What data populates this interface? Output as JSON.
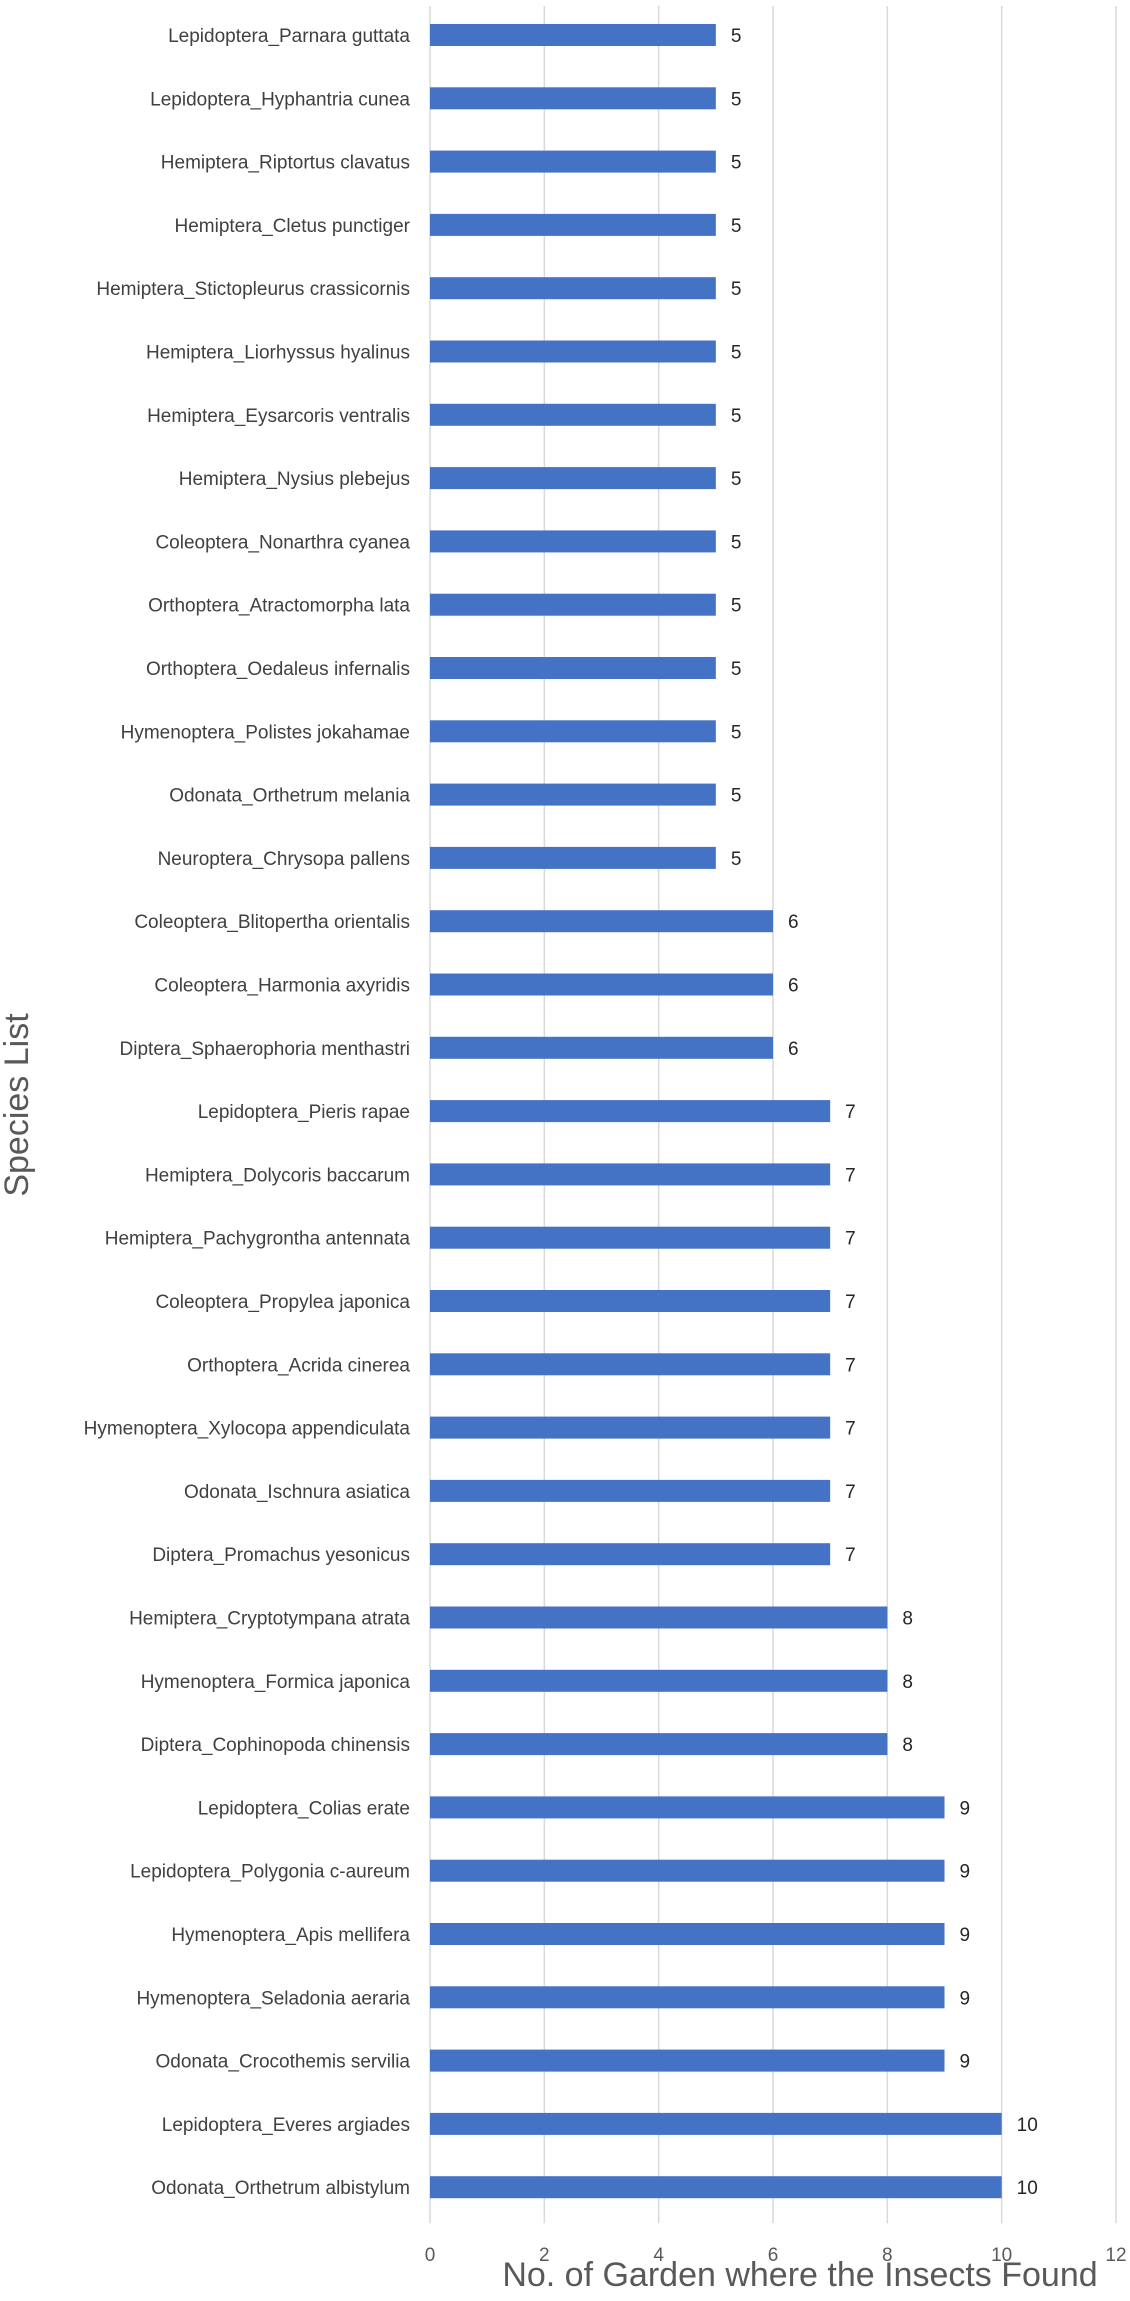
{
  "chart_data": {
    "type": "bar",
    "orientation": "horizontal",
    "title": "",
    "xlabel": "No. of Garden where the Insects Found",
    "ylabel": "Species List",
    "xlim": [
      0,
      12
    ],
    "xticks": [
      0,
      2,
      4,
      6,
      8,
      10,
      12
    ],
    "grid": "vertical",
    "legend": "none",
    "bar_color": "#4472C4",
    "gridline_color": "#D9D9D9",
    "categories": [
      "Lepidoptera_Parnara guttata",
      "Lepidoptera_Hyphantria cunea",
      "Hemiptera_Riptortus clavatus",
      "Hemiptera_Cletus punctiger",
      "Hemiptera_Stictopleurus crassicornis",
      "Hemiptera_Liorhyssus hyalinus",
      "Hemiptera_Eysarcoris ventralis",
      "Hemiptera_Nysius plebejus",
      "Coleoptera_Nonarthra cyanea",
      "Orthoptera_Atractomorpha lata",
      "Orthoptera_Oedaleus infernalis",
      "Hymenoptera_Polistes jokahamae",
      "Odonata_Orthetrum melania",
      "Neuroptera_Chrysopa pallens",
      "Coleoptera_Blitopertha orientalis",
      "Coleoptera_Harmonia axyridis",
      "Diptera_Sphaerophoria menthastri",
      "Lepidoptera_Pieris rapae",
      "Hemiptera_Dolycoris baccarum",
      "Hemiptera_Pachygrontha antennata",
      "Coleoptera_Propylea japonica",
      "Orthoptera_Acrida cinerea",
      "Hymenoptera_Xylocopa appendiculata",
      "Odonata_Ischnura asiatica",
      "Diptera_Promachus yesonicus",
      "Hemiptera_Cryptotympana atrata",
      "Hymenoptera_Formica japonica",
      "Diptera_Cophinopoda chinensis",
      "Lepidoptera_Colias erate",
      "Lepidoptera_Polygonia c-aureum",
      "Hymenoptera_Apis mellifera",
      "Hymenoptera_Seladonia aeraria",
      "Odonata_Crocothemis servilia",
      "Lepidoptera_Everes argiades",
      "Odonata_Orthetrum albistylum"
    ],
    "values": [
      5,
      5,
      5,
      5,
      5,
      5,
      5,
      5,
      5,
      5,
      5,
      5,
      5,
      5,
      6,
      6,
      6,
      7,
      7,
      7,
      7,
      7,
      7,
      7,
      7,
      8,
      8,
      8,
      9,
      9,
      9,
      9,
      9,
      10,
      10
    ]
  }
}
